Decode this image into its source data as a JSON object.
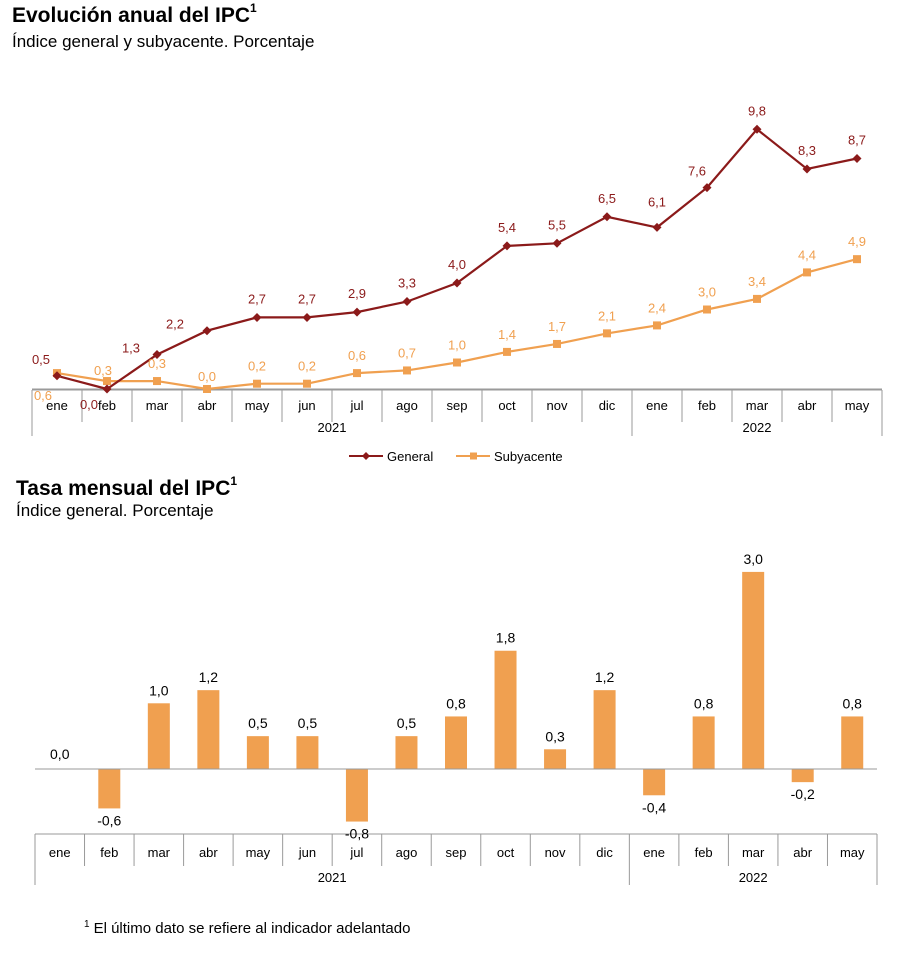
{
  "chart_data": [
    {
      "type": "line",
      "title": "Evolución anual del IPC",
      "title_sup": "1",
      "subtitle": "Índice general y subyacente. Porcentaje",
      "categories": [
        "ene",
        "feb",
        "mar",
        "abr",
        "may",
        "jun",
        "jul",
        "ago",
        "sep",
        "oct",
        "nov",
        "dic",
        "ene",
        "feb",
        "mar",
        "abr",
        "may"
      ],
      "year_groups": [
        {
          "label": "2021",
          "count": 12
        },
        {
          "label": "2022",
          "count": 5
        }
      ],
      "series": [
        {
          "name": "General",
          "color": "#8b1a1a",
          "marker": "diamond",
          "values": [
            0.5,
            0.0,
            1.3,
            2.2,
            2.7,
            2.7,
            2.9,
            3.3,
            4.0,
            5.4,
            5.5,
            6.5,
            6.1,
            7.6,
            9.8,
            8.3,
            8.7
          ],
          "labels": [
            "0,5",
            "0,0",
            "1,3",
            "2,2",
            "2,7",
            "2,7",
            "2,9",
            "3,3",
            "4,0",
            "5,4",
            "5,5",
            "6,5",
            "6,1",
            "7,6",
            "9,8",
            "8,3",
            "8,7"
          ]
        },
        {
          "name": "Subyacente",
          "color": "#f0a050",
          "marker": "square",
          "values": [
            0.6,
            0.3,
            0.3,
            0.0,
            0.2,
            0.2,
            0.6,
            0.7,
            1.0,
            1.4,
            1.7,
            2.1,
            2.4,
            3.0,
            3.4,
            4.4,
            4.9
          ],
          "labels": [
            "0,6",
            "0,3",
            "0,3",
            "0,0",
            "0,2",
            "0,2",
            "0,6",
            "0,7",
            "1,0",
            "1,4",
            "1,7",
            "2,1",
            "2,4",
            "3,0",
            "3,4",
            "4,4",
            "4,9"
          ]
        }
      ],
      "legend": "bottom-center"
    },
    {
      "type": "bar",
      "title": "Tasa mensual del IPC",
      "title_sup": "1",
      "subtitle": "Índice general. Porcentaje",
      "categories": [
        "ene",
        "feb",
        "mar",
        "abr",
        "may",
        "jun",
        "jul",
        "ago",
        "sep",
        "oct",
        "nov",
        "dic",
        "ene",
        "feb",
        "mar",
        "abr",
        "may"
      ],
      "year_groups": [
        {
          "label": "2021",
          "count": 12
        },
        {
          "label": "2022",
          "count": 5
        }
      ],
      "color": "#f0a050",
      "values": [
        0.0,
        -0.6,
        1.0,
        1.2,
        0.5,
        0.5,
        -0.8,
        0.5,
        0.8,
        1.8,
        0.3,
        1.2,
        -0.4,
        0.8,
        3.0,
        -0.2,
        0.8
      ],
      "labels": [
        "0,0",
        "-0,6",
        "1,0",
        "1,2",
        "0,5",
        "0,5",
        "-0,8",
        "0,5",
        "0,8",
        "1,8",
        "0,3",
        "1,2",
        "-0,4",
        "0,8",
        "3,0",
        "-0,2",
        "0,8"
      ]
    }
  ],
  "footnote": {
    "sup": "1",
    "text": "El último dato se refiere al indicador adelantado"
  }
}
